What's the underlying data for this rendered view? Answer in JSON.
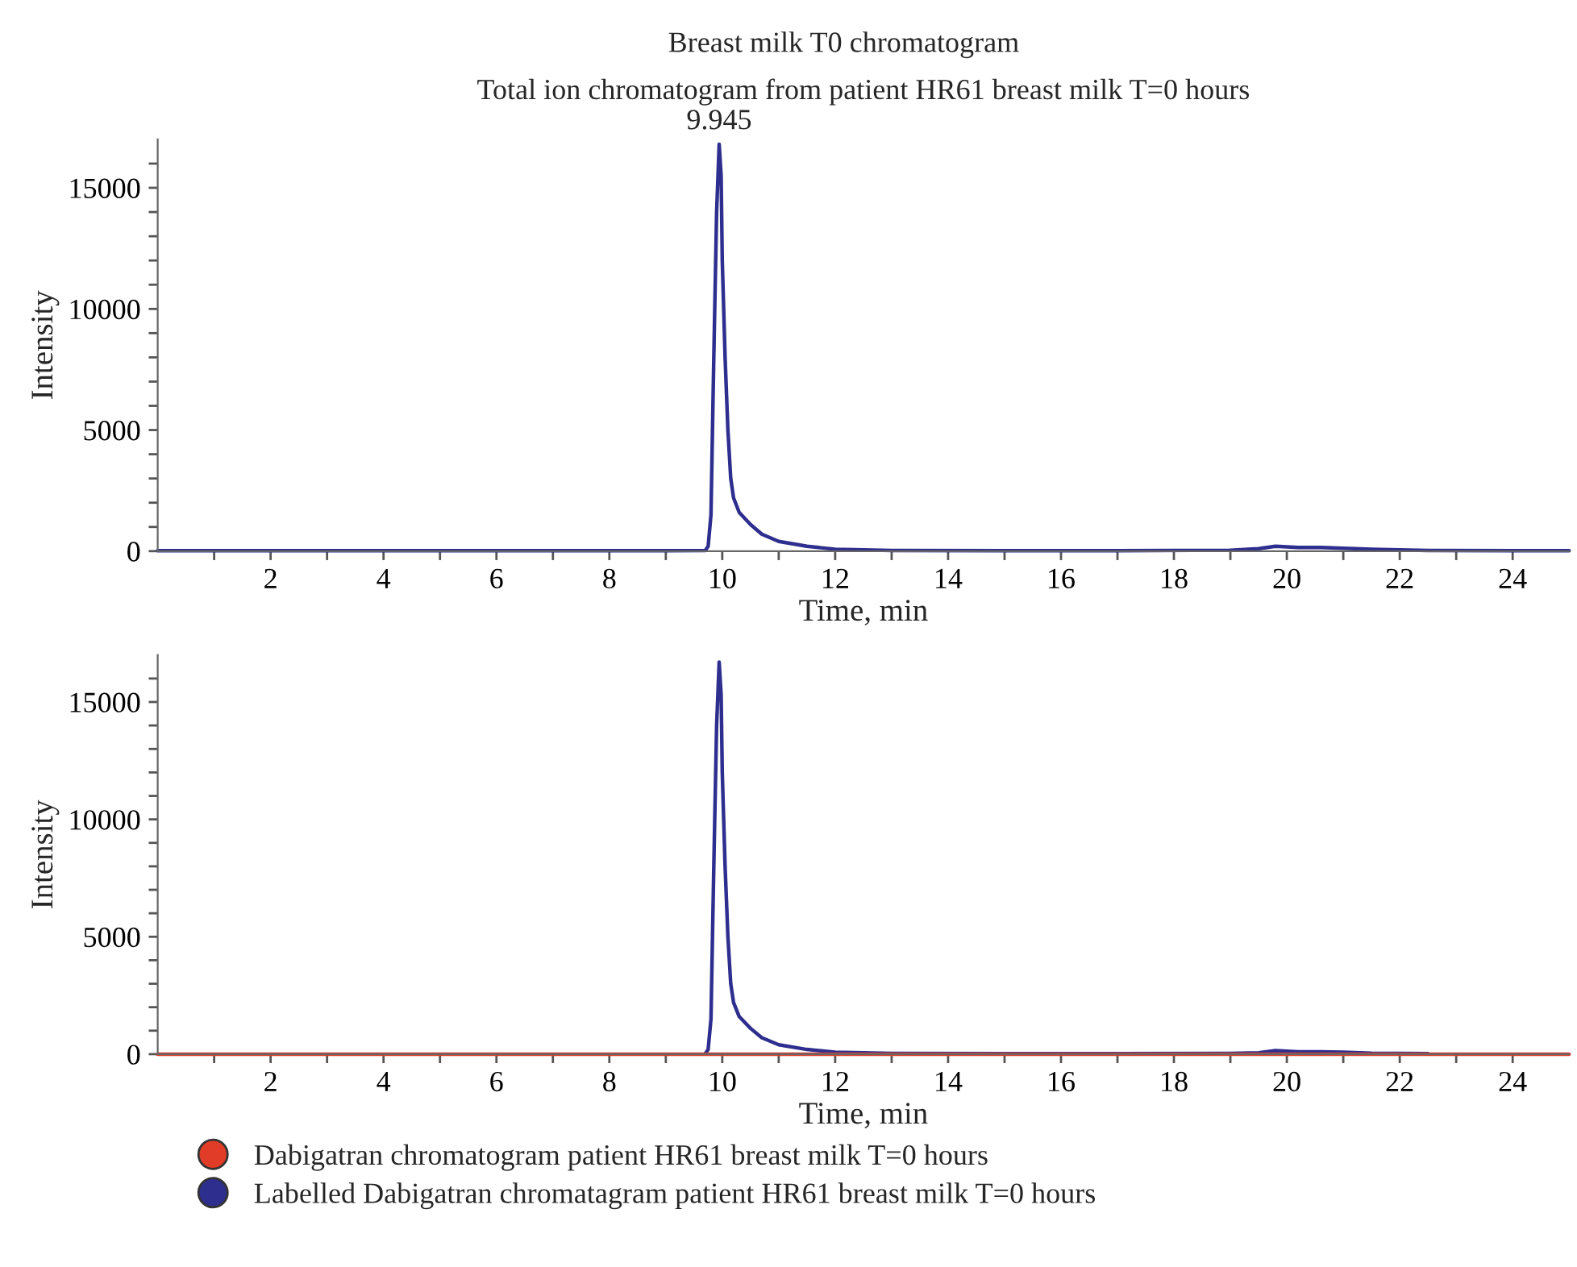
{
  "chart_data": [
    {
      "type": "line",
      "title": "Breast milk T0 chromatogram",
      "subtitle": "Total ion chromatogram from patient HR61 breast milk T=0 hours",
      "xlabel": "Time, min",
      "ylabel": "Intensity",
      "x": [
        0,
        2,
        4,
        6,
        8,
        9,
        9.7,
        9.75,
        9.8,
        9.85,
        9.9,
        9.945,
        9.98,
        10.0,
        10.05,
        10.1,
        10.15,
        10.2,
        10.3,
        10.5,
        10.7,
        11.0,
        11.5,
        12.0,
        13,
        15,
        17,
        19,
        19.5,
        19.8,
        20.2,
        20.6,
        21.0,
        21.5,
        22.5,
        24,
        25
      ],
      "series": [
        {
          "color": "#2e2e8f",
          "values": [
            20,
            20,
            20,
            20,
            20,
            20,
            30,
            200,
            1500,
            8000,
            14000,
            16800,
            15500,
            12000,
            8000,
            5000,
            3000,
            2200,
            1600,
            1100,
            700,
            400,
            200,
            80,
            30,
            20,
            20,
            40,
            100,
            200,
            150,
            150,
            120,
            80,
            30,
            20,
            20
          ]
        }
      ],
      "annotations": [
        {
          "text": "9.945",
          "x": 9.945,
          "y": 16800
        }
      ],
      "xlim": [
        0,
        25
      ],
      "ylim": [
        0,
        17000
      ],
      "xticks": [
        {
          "value": 1,
          "label": null
        },
        2,
        {
          "value": 3,
          "label": null
        },
        4,
        {
          "value": 5,
          "label": null
        },
        6,
        {
          "value": 7,
          "label": null
        },
        8,
        {
          "value": 9,
          "label": null
        },
        10,
        {
          "value": 11,
          "label": null
        },
        12,
        {
          "value": 13,
          "label": null
        },
        14,
        {
          "value": 15,
          "label": null
        },
        16,
        {
          "value": 17,
          "label": null
        },
        18,
        {
          "value": 19,
          "label": null
        },
        20,
        {
          "value": 21,
          "label": null
        },
        22,
        {
          "value": 23,
          "label": null
        },
        24
      ],
      "yticks": [
        0,
        {
          "value": 1000,
          "label": null
        },
        {
          "value": 2000,
          "label": null
        },
        {
          "value": 3000,
          "label": null
        },
        {
          "value": 4000,
          "label": null
        },
        5000,
        {
          "value": 6000,
          "label": null
        },
        {
          "value": 7000,
          "label": null
        },
        {
          "value": 8000,
          "label": null
        },
        {
          "value": 9000,
          "label": null
        },
        10000,
        {
          "value": 11000,
          "label": null
        },
        {
          "value": 12000,
          "label": null
        },
        {
          "value": 13000,
          "label": null
        },
        {
          "value": 14000,
          "label": null
        },
        15000,
        {
          "value": 16000,
          "label": null
        }
      ],
      "grid": false,
      "legend": false
    },
    {
      "type": "line",
      "xlabel": "Time, min",
      "ylabel": "Intensity",
      "x": [
        0,
        2,
        4,
        6,
        8,
        9,
        9.7,
        9.75,
        9.8,
        9.85,
        9.9,
        9.945,
        9.98,
        10.0,
        10.05,
        10.1,
        10.15,
        10.2,
        10.3,
        10.5,
        10.7,
        11.0,
        11.5,
        12.0,
        13,
        15,
        17,
        19,
        19.5,
        19.8,
        20.2,
        20.6,
        21.0,
        21.5,
        22.5,
        24,
        25
      ],
      "series": [
        {
          "name": "Labelled Dabigatran chromatagram patient HR61 breast milk T=0 hours",
          "color": "#2e2e8f",
          "values": [
            null,
            null,
            null,
            null,
            null,
            null,
            20,
            200,
            1500,
            8000,
            14000,
            16700,
            15300,
            12000,
            8000,
            5000,
            3000,
            2200,
            1600,
            1100,
            700,
            400,
            200,
            80,
            30,
            20,
            20,
            30,
            60,
            150,
            100,
            100,
            80,
            40,
            20,
            null,
            null
          ]
        },
        {
          "name": "Dabigatran chromatogram patient HR61 breast milk T=0 hours",
          "color": "#e03c28",
          "values": [
            0,
            0,
            0,
            0,
            0,
            0,
            0,
            0,
            0,
            0,
            0,
            0,
            0,
            0,
            0,
            0,
            0,
            0,
            0,
            0,
            0,
            0,
            0,
            0,
            0,
            0,
            0,
            0,
            0,
            0,
            0,
            0,
            0,
            0,
            0,
            0,
            0
          ]
        }
      ],
      "xlim": [
        0,
        25
      ],
      "ylim": [
        0,
        17000
      ],
      "xticks": [
        {
          "value": 1,
          "label": null
        },
        2,
        {
          "value": 3,
          "label": null
        },
        4,
        {
          "value": 5,
          "label": null
        },
        6,
        {
          "value": 7,
          "label": null
        },
        8,
        {
          "value": 9,
          "label": null
        },
        10,
        {
          "value": 11,
          "label": null
        },
        12,
        {
          "value": 13,
          "label": null
        },
        14,
        {
          "value": 15,
          "label": null
        },
        16,
        {
          "value": 17,
          "label": null
        },
        18,
        {
          "value": 19,
          "label": null
        },
        20,
        {
          "value": 21,
          "label": null
        },
        22,
        {
          "value": 23,
          "label": null
        },
        24
      ],
      "yticks": [
        0,
        {
          "value": 1000,
          "label": null
        },
        {
          "value": 2000,
          "label": null
        },
        {
          "value": 3000,
          "label": null
        },
        {
          "value": 4000,
          "label": null
        },
        5000,
        {
          "value": 6000,
          "label": null
        },
        {
          "value": 7000,
          "label": null
        },
        {
          "value": 8000,
          "label": null
        },
        {
          "value": 9000,
          "label": null
        },
        10000,
        {
          "value": 11000,
          "label": null
        },
        {
          "value": 12000,
          "label": null
        },
        {
          "value": 13000,
          "label": null
        },
        {
          "value": 14000,
          "label": null
        },
        15000,
        {
          "value": 16000,
          "label": null
        }
      ],
      "grid": false,
      "legend": "bottom"
    }
  ]
}
